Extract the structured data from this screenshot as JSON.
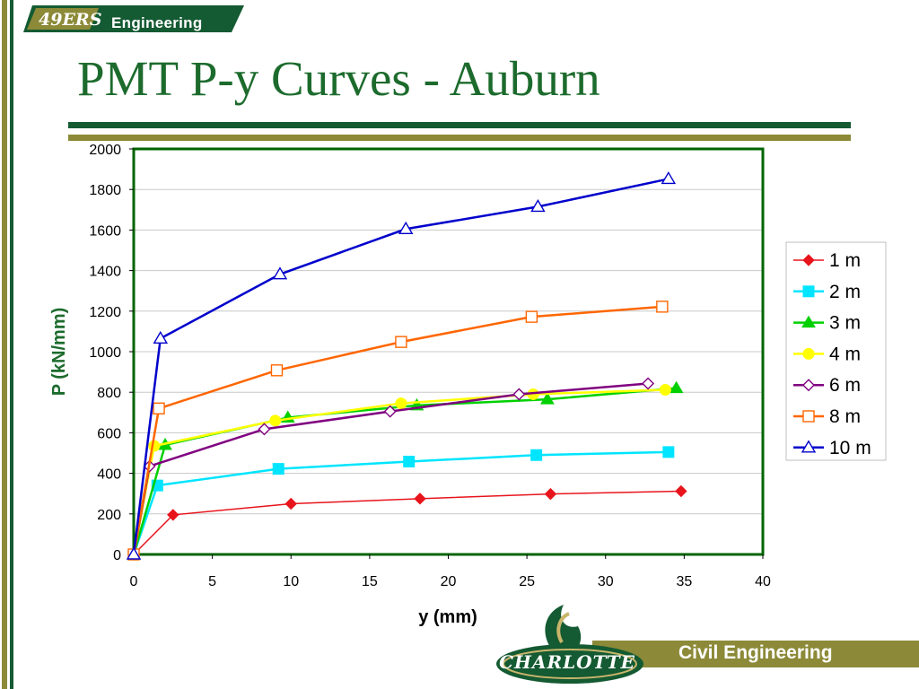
{
  "header": {
    "logo_badge": "49ERS",
    "logo_label": "Engineering"
  },
  "slide": {
    "title": "PMT P-y Curves - Auburn"
  },
  "footer": {
    "department": "Civil Engineering",
    "university_wordmark": "CHARLOTTE"
  },
  "colors": {
    "title_green": "#1c6b2d",
    "olive": "#8c8a38",
    "dark_green": "#145a32",
    "plot_border": "#006400"
  },
  "chart_data": {
    "type": "line",
    "title": "",
    "xlabel": "y (mm)",
    "ylabel": "P (kN/mm)",
    "xlim": [
      0,
      40
    ],
    "ylim": [
      0,
      2000
    ],
    "xticks": [
      0,
      5,
      10,
      15,
      20,
      25,
      30,
      35,
      40
    ],
    "yticks": [
      0,
      200,
      400,
      600,
      800,
      1000,
      1200,
      1400,
      1600,
      1800,
      2000
    ],
    "grid": "horizontal",
    "legend_position": "right",
    "series": [
      {
        "name": "1 m",
        "color": "#e8141c",
        "marker": "diamond-filled",
        "points": [
          [
            0,
            0
          ],
          [
            2.5,
            195
          ],
          [
            10,
            250
          ],
          [
            18.2,
            275
          ],
          [
            26.5,
            298
          ],
          [
            34.8,
            312
          ]
        ]
      },
      {
        "name": "2 m",
        "color": "#00e5ff",
        "marker": "square-filled",
        "points": [
          [
            0,
            0
          ],
          [
            1.5,
            340
          ],
          [
            9.2,
            422
          ],
          [
            17.5,
            458
          ],
          [
            25.6,
            490
          ],
          [
            34,
            505
          ]
        ]
      },
      {
        "name": "3 m",
        "color": "#00d000",
        "marker": "triangle-filled",
        "points": [
          [
            0,
            0
          ],
          [
            2,
            540
          ],
          [
            9.8,
            675
          ],
          [
            18,
            735
          ],
          [
            26.3,
            765
          ],
          [
            34.5,
            820
          ]
        ]
      },
      {
        "name": "4 m",
        "color": "#ffff00",
        "marker": "circle-filled",
        "points": [
          [
            0,
            0
          ],
          [
            1.3,
            535
          ],
          [
            9,
            660
          ],
          [
            17,
            745
          ],
          [
            25.4,
            790
          ],
          [
            33.8,
            812
          ]
        ]
      },
      {
        "name": "6 m",
        "color": "#800080",
        "marker": "diamond-open",
        "points": [
          [
            0,
            0
          ],
          [
            1,
            435
          ],
          [
            8.3,
            618
          ],
          [
            16.3,
            705
          ],
          [
            24.5,
            790
          ],
          [
            32.7,
            843
          ]
        ]
      },
      {
        "name": "8 m",
        "color": "#ff6600",
        "marker": "square-open",
        "points": [
          [
            0,
            0
          ],
          [
            1.6,
            720
          ],
          [
            9.1,
            908
          ],
          [
            17,
            1048
          ],
          [
            25.3,
            1172
          ],
          [
            33.6,
            1222
          ]
        ]
      },
      {
        "name": "10 m",
        "color": "#0000cc",
        "marker": "triangle-open",
        "points": [
          [
            0,
            0
          ],
          [
            1.7,
            1065
          ],
          [
            9.3,
            1382
          ],
          [
            17.3,
            1605
          ],
          [
            25.7,
            1715
          ],
          [
            34,
            1852
          ]
        ]
      }
    ]
  }
}
